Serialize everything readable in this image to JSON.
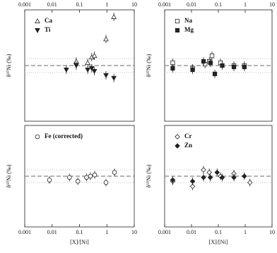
{
  "chart_data": [
    {
      "type": "scatter",
      "xlog": true,
      "xlim": [
        0.001,
        10
      ],
      "xticks": [
        0.001,
        0.01,
        0.1,
        1,
        10
      ],
      "xtick_position": "top",
      "ylim": [
        -0.4,
        0.4
      ],
      "ylabel": "δ⁶⁰Ni (‰)",
      "legend": "upper left",
      "hlines": [
        {
          "value": 0,
          "style": "dashed"
        },
        {
          "value": 0.05,
          "style": "dotted"
        },
        {
          "value": -0.05,
          "style": "dotted"
        }
      ],
      "series": [
        {
          "name": "Ca",
          "marker": "triangle-up",
          "filled": false,
          "color": "#222222",
          "x": [
            0.076,
            0.2,
            0.28,
            0.35,
            0.93,
            1.8
          ],
          "values": [
            0.03,
            0.02,
            0.06,
            0.07,
            0.19,
            0.35
          ],
          "errors": [
            0.03,
            0.03,
            0.03,
            0.03,
            0.03,
            0.03
          ]
        },
        {
          "name": "Ti",
          "marker": "triangle-down",
          "filled": true,
          "color": "#222222",
          "x": [
            0.033,
            0.076,
            0.2,
            0.28,
            0.35,
            0.93,
            1.8
          ],
          "values": [
            -0.03,
            0.0,
            -0.03,
            -0.02,
            -0.04,
            -0.07,
            -0.09
          ],
          "errors": [
            0.03,
            0.03,
            0.03,
            0.03,
            0.03,
            0.03,
            0.03
          ]
        }
      ]
    },
    {
      "type": "scatter",
      "xlog": true,
      "xlim": [
        0.001,
        10
      ],
      "xticks": [
        0.001,
        0.01,
        0.1,
        1,
        10
      ],
      "xtick_position": "top",
      "ylim": [
        -0.4,
        0.4
      ],
      "ylabel": "δ⁶⁰Ni (‰)",
      "legend": "upper left",
      "hlines": [
        {
          "value": 0,
          "style": "dashed"
        },
        {
          "value": 0.05,
          "style": "dotted"
        },
        {
          "value": -0.05,
          "style": "dotted"
        }
      ],
      "series": [
        {
          "name": "Na",
          "marker": "square",
          "filled": false,
          "color": "#222222",
          "x": [
            0.002,
            0.011,
            0.032,
            0.046,
            0.058,
            0.12,
            0.38,
            0.93
          ],
          "values": [
            0.02,
            -0.02,
            0.01,
            0.03,
            0.07,
            0.02,
            0.0,
            0.0
          ],
          "errors": [
            0.03,
            0.03,
            0.03,
            0.03,
            0.03,
            0.03,
            0.03,
            0.03
          ]
        },
        {
          "name": "Mg",
          "marker": "square",
          "filled": true,
          "color": "#222222",
          "x": [
            0.002,
            0.011,
            0.028,
            0.051,
            0.074,
            0.14,
            0.38,
            0.93
          ],
          "values": [
            -0.02,
            -0.03,
            0.03,
            0.02,
            -0.06,
            0.0,
            -0.01,
            -0.01
          ],
          "errors": [
            0.03,
            0.03,
            0.03,
            0.03,
            0.03,
            0.03,
            0.03,
            0.03
          ]
        }
      ]
    },
    {
      "type": "scatter",
      "xlog": true,
      "xlim": [
        0.001,
        10
      ],
      "xticks": [
        0.001,
        0.01,
        0.1,
        1,
        10
      ],
      "xtick_position": "bottom",
      "ylim": [
        -0.4,
        0.4
      ],
      "ylabel": "δ⁶⁰Ni (‰)",
      "xlabel": "[X]/[Ni]",
      "legend": "upper left",
      "hlines": [
        {
          "value": 0,
          "style": "dashed"
        },
        {
          "value": 0.05,
          "style": "dotted"
        },
        {
          "value": -0.05,
          "style": "dotted"
        }
      ],
      "series": [
        {
          "name": "Fe (corrected)",
          "marker": "circle",
          "filled": false,
          "color": "#222222",
          "x": [
            0.008,
            0.043,
            0.087,
            0.18,
            0.25,
            0.36,
            0.93,
            1.9
          ],
          "values": [
            -0.03,
            -0.01,
            -0.04,
            -0.01,
            0.0,
            0.01,
            -0.05,
            0.03
          ],
          "errors": [
            0.03,
            0.03,
            0.03,
            0.03,
            0.03,
            0.03,
            0.03,
            0.03
          ]
        }
      ]
    },
    {
      "type": "scatter",
      "xlog": true,
      "xlim": [
        0.001,
        10
      ],
      "xticks": [
        0.001,
        0.01,
        0.1,
        1,
        10
      ],
      "xtick_position": "bottom",
      "ylim": [
        -0.4,
        0.4
      ],
      "ylabel": "δ⁶⁰Ni (‰)",
      "xlabel": "[X]/[Ni]",
      "legend": "upper left",
      "hlines": [
        {
          "value": 0,
          "style": "dashed"
        },
        {
          "value": 0.05,
          "style": "dotted"
        },
        {
          "value": -0.05,
          "style": "dotted"
        }
      ],
      "series": [
        {
          "name": "Cr",
          "marker": "diamond",
          "filled": false,
          "color": "#222222",
          "x": [
            0.002,
            0.011,
            0.028,
            0.046,
            0.12,
            0.38,
            1.5
          ],
          "values": [
            -0.04,
            -0.08,
            0.05,
            0.03,
            0.0,
            0.02,
            -0.05
          ],
          "errors": [
            0.03,
            0.03,
            0.03,
            0.03,
            0.03,
            0.03,
            0.03
          ]
        },
        {
          "name": "Zn",
          "marker": "diamond",
          "filled": true,
          "color": "#222222",
          "x": [
            0.002,
            0.011,
            0.028,
            0.05,
            0.09,
            0.14,
            0.38,
            0.93
          ],
          "values": [
            -0.03,
            -0.04,
            -0.01,
            -0.01,
            0.03,
            -0.01,
            -0.01,
            0.0
          ],
          "errors": [
            0.03,
            0.03,
            0.03,
            0.03,
            0.03,
            0.03,
            0.03,
            0.03
          ]
        }
      ]
    }
  ]
}
